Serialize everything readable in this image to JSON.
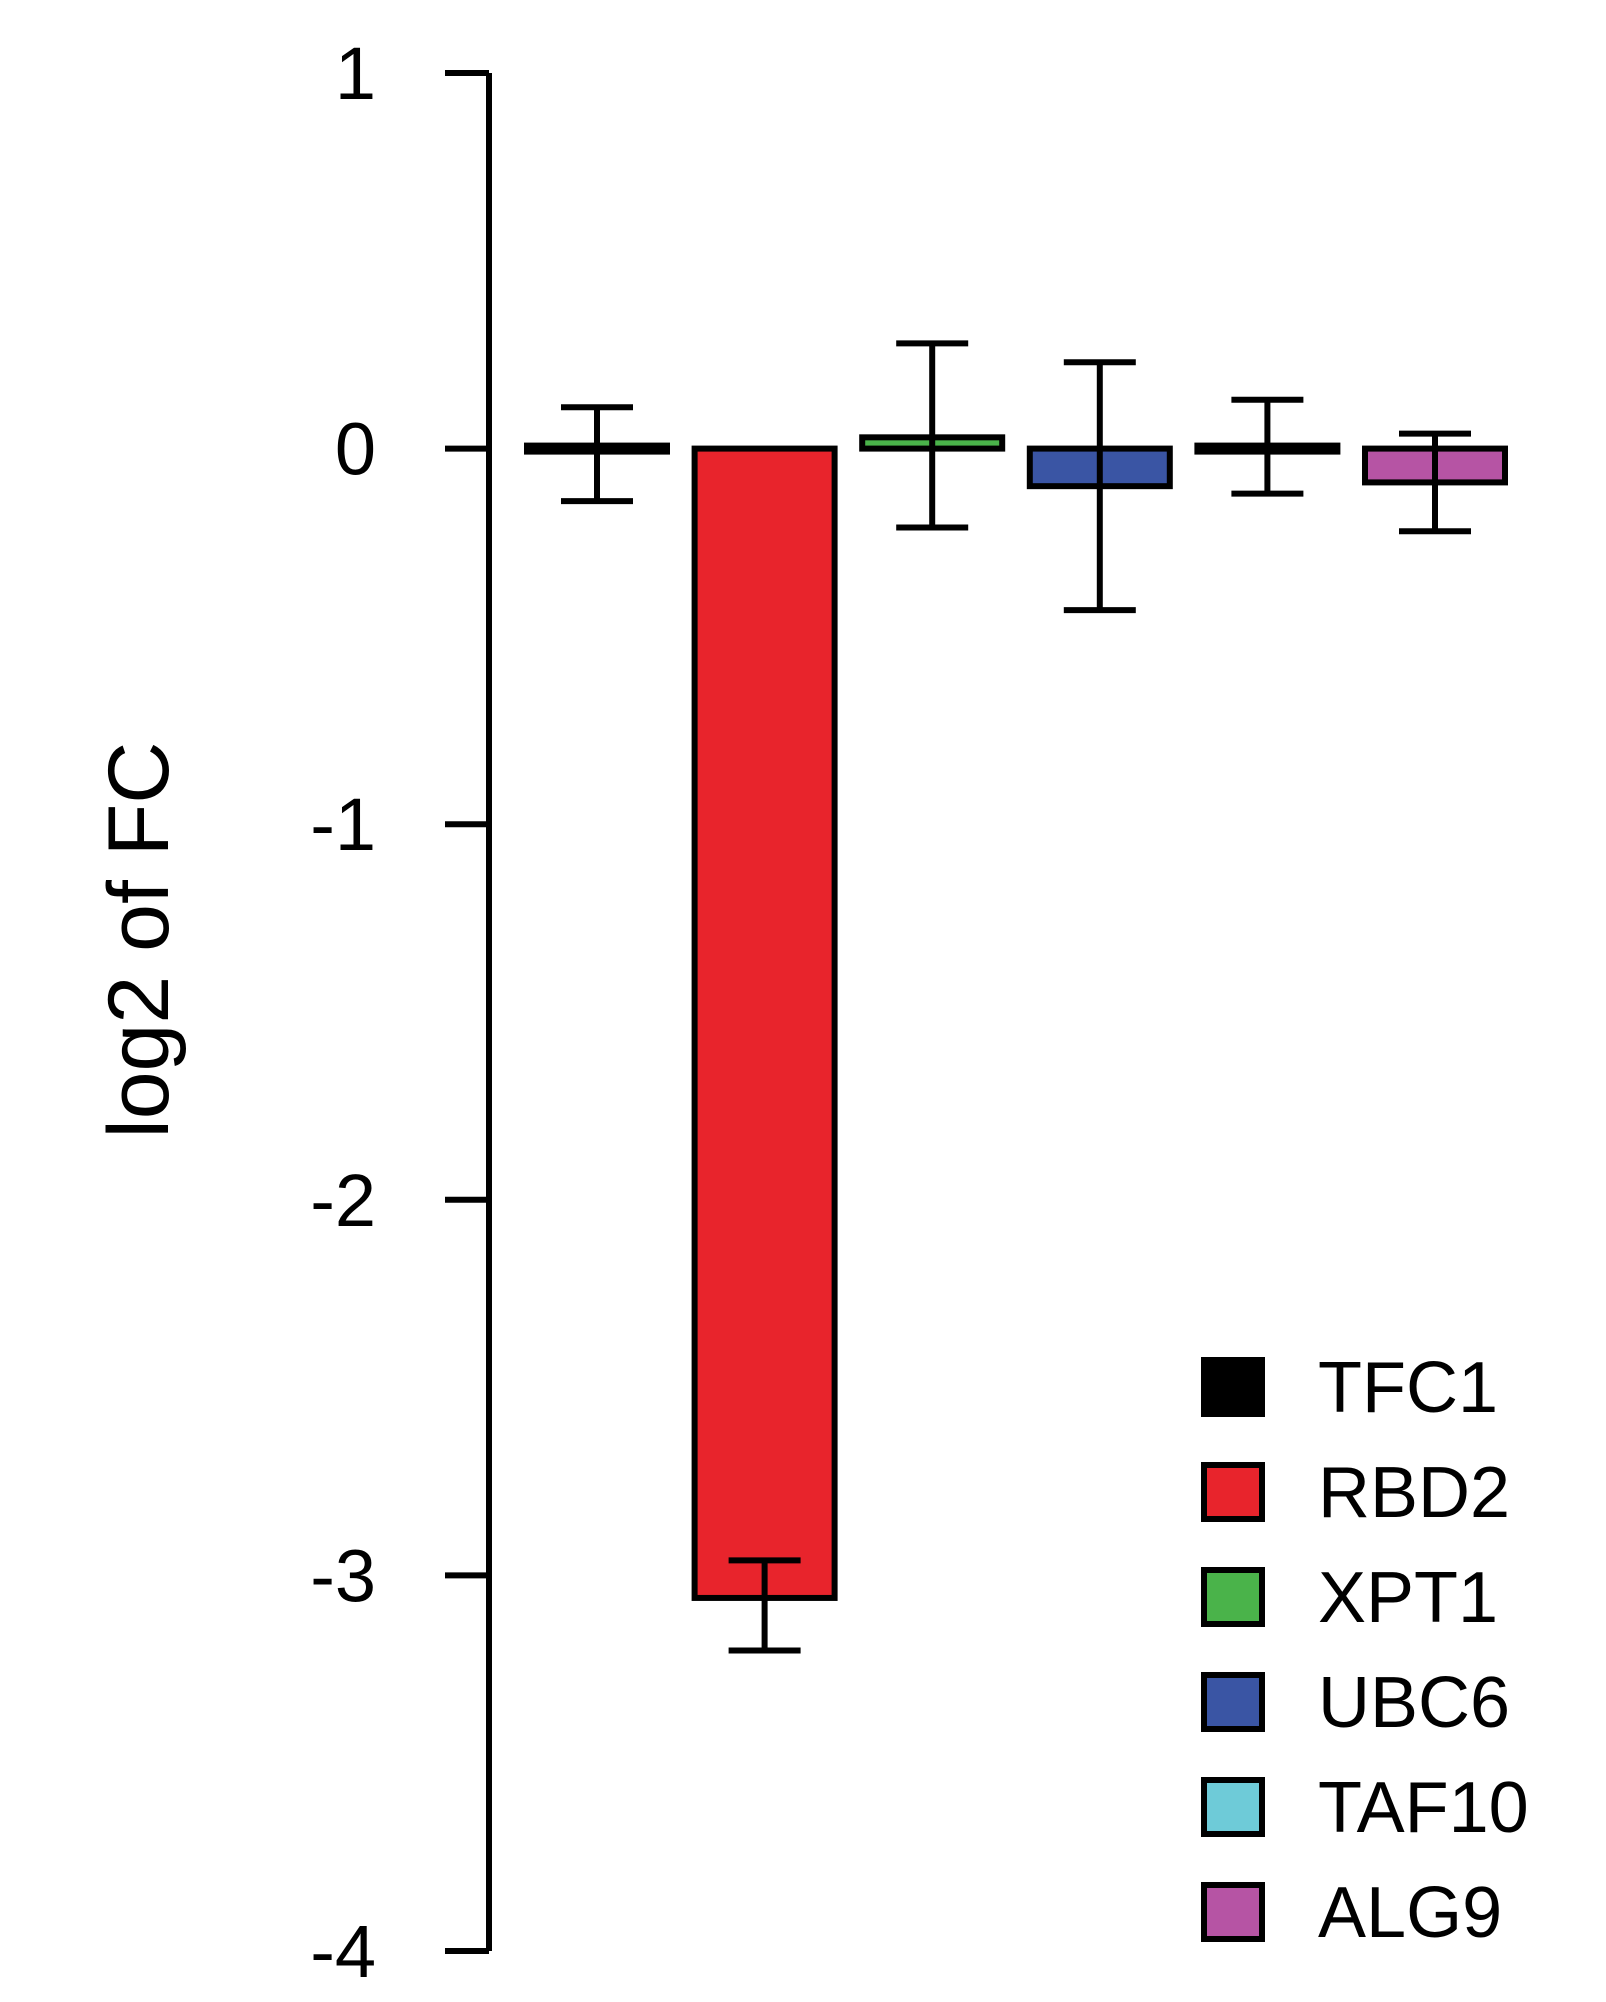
{
  "chart_data": {
    "type": "bar",
    "title": "",
    "xlabel": "",
    "ylabel": "log2 of FC",
    "ylim": [
      -4,
      1
    ],
    "yticks": [
      1,
      0,
      -1,
      -2,
      -3,
      -4
    ],
    "ytick_labels": [
      "1",
      "0",
      "-1",
      "-2",
      "-3",
      "-4"
    ],
    "categories": [
      "TFC1",
      "RBD2",
      "XPT1",
      "UBC6",
      "TAF10",
      "ALG9"
    ],
    "values": [
      0.0,
      -3.06,
      0.03,
      -0.1,
      0.0,
      -0.09
    ],
    "error_low": [
      -0.14,
      -3.2,
      -0.21,
      -0.43,
      -0.12,
      -0.22
    ],
    "error_high": [
      0.11,
      -2.96,
      0.28,
      0.23,
      0.13,
      0.04
    ],
    "colors": [
      "#000000",
      "#e8242c",
      "#4ab34a",
      "#3a55a4",
      "#6ecbd8",
      "#b654a4"
    ],
    "grid": false,
    "legend_position": "bottom-right"
  }
}
